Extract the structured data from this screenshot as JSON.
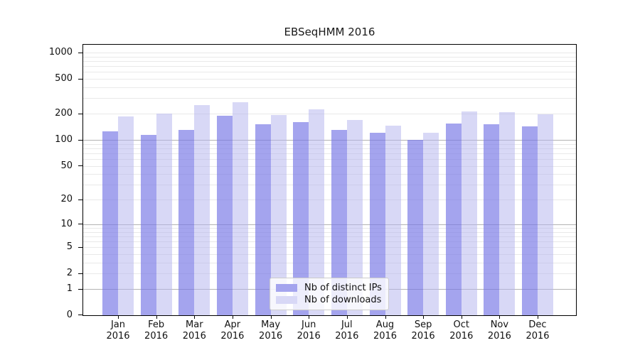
{
  "chart_data": {
    "type": "bar",
    "title": "EBSeqHMM 2016",
    "categories": [
      "Jan 2016",
      "Feb 2016",
      "Mar 2016",
      "Apr 2016",
      "May 2016",
      "Jun 2016",
      "Jul 2016",
      "Aug 2016",
      "Sep 2016",
      "Oct 2016",
      "Nov 2016",
      "Dec 2016"
    ],
    "months": [
      "Jan",
      "Feb",
      "Mar",
      "Apr",
      "May",
      "Jun",
      "Jul",
      "Aug",
      "Sep",
      "Oct",
      "Nov",
      "Dec"
    ],
    "year": "2016",
    "series": [
      {
        "name": "Nb of distinct IPs",
        "color": "#a4a4ee",
        "values": [
          125,
          115,
          130,
          188,
          151,
          159,
          131,
          121,
          100,
          153,
          150,
          144
        ]
      },
      {
        "name": "Nb of downloads",
        "color": "#d8d8f6",
        "values": [
          185,
          200,
          253,
          273,
          192,
          225,
          168,
          147,
          120,
          213,
          208,
          197
        ]
      }
    ],
    "y_axis": {
      "scale": "log10(v+1)",
      "ticks": [
        0,
        1,
        2,
        5,
        10,
        20,
        50,
        100,
        200,
        500,
        1000
      ],
      "max": 1000,
      "decade_lines": [
        1,
        10,
        100
      ]
    },
    "xlabel": "",
    "ylabel": "",
    "grid": true,
    "legend": {
      "position": "inside-bottom-center",
      "entries": [
        "Nb of distinct IPs",
        "Nb of downloads"
      ]
    }
  },
  "colors": {
    "bar_distinct_ips": "#a4a4ee",
    "bar_downloads": "#d8d8f6",
    "decade_gridline": "#b3b3b3",
    "minor_gridline": "#e9e9e9",
    "axis": "#000000",
    "background": "#ffffff"
  }
}
